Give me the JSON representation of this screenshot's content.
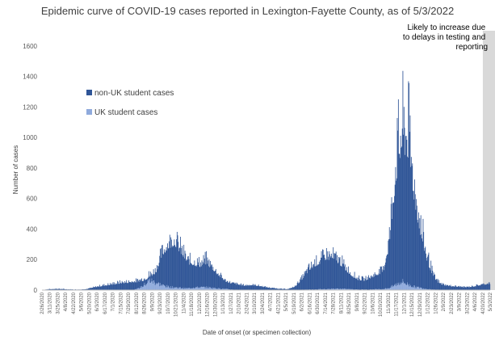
{
  "chart_data": {
    "type": "bar",
    "stacked": true,
    "title": "Epidemic curve of COVID-19 cases reported in Lexington-Fayette County, as of 5/3/2022",
    "xlabel": "Date of onset (or specimen collection)",
    "ylabel": "Number of cases",
    "ylim": [
      0,
      1700
    ],
    "yticks": [
      0,
      200,
      400,
      600,
      800,
      1000,
      1200,
      1400,
      1600
    ],
    "grid": false,
    "legend_position": "left-inside",
    "x_start": "2/26/2020",
    "x_end": "5/3/2022",
    "x_ticks": [
      "2/26/2020",
      "3/11/2020",
      "3/25/2020",
      "4/8/2020",
      "4/22/2020",
      "5/6/2020",
      "5/20/2020",
      "6/3/2020",
      "6/17/2020",
      "7/1/2020",
      "7/15/2020",
      "7/29/2020",
      "8/12/2020",
      "8/26/2020",
      "9/9/2020",
      "9/23/2020",
      "10/7/2020",
      "10/21/2020",
      "11/4/2020",
      "11/18/2020",
      "12/2/2020",
      "12/16/2020",
      "12/30/2020",
      "1/13/2021",
      "1/27/2021",
      "2/10/2021",
      "2/24/2021",
      "3/10/2021",
      "3/24/2021",
      "4/7/2021",
      "4/21/2021",
      "5/5/2021",
      "5/19/2021",
      "6/2/2021",
      "6/16/2021",
      "6/30/2021",
      "7/14/2021",
      "7/28/2021",
      "8/11/2021",
      "8/25/2021",
      "9/8/2021",
      "9/22/2021",
      "10/6/2021",
      "10/20/2021",
      "11/3/2021",
      "11/17/2021",
      "12/1/2021",
      "12/15/2021",
      "12/29/2021",
      "1/12/2022",
      "1/26/2022",
      "2/9/2022",
      "2/23/2022",
      "3/9/2022",
      "3/23/2022",
      "4/6/2022",
      "4/20/2022",
      "5/3/2022"
    ],
    "series": [
      {
        "name": "non-UK student cases",
        "color": "#2f5597",
        "weekly_peak_values": [
          2,
          8,
          12,
          10,
          8,
          6,
          5,
          10,
          22,
          35,
          45,
          55,
          65,
          70,
          75,
          80,
          110,
          140,
          180,
          320,
          400,
          420,
          350,
          250,
          240,
          230,
          260,
          190,
          130,
          80,
          60,
          50,
          40,
          45,
          40,
          30,
          20,
          15,
          10,
          10,
          30,
          90,
          170,
          220,
          250,
          300,
          290,
          260,
          200,
          140,
          100,
          90,
          110,
          140,
          170,
          500,
          1150,
          1450,
          1420,
          900,
          550,
          300,
          120,
          60,
          40,
          35,
          30,
          25,
          30,
          40,
          50,
          60
        ],
        "weekly_typical_values": [
          1,
          4,
          7,
          6,
          4,
          3,
          3,
          6,
          14,
          22,
          28,
          33,
          40,
          44,
          47,
          50,
          60,
          80,
          110,
          220,
          270,
          290,
          230,
          170,
          160,
          150,
          170,
          130,
          90,
          55,
          40,
          33,
          27,
          30,
          27,
          20,
          14,
          10,
          6,
          6,
          20,
          60,
          110,
          150,
          170,
          200,
          190,
          170,
          130,
          90,
          65,
          60,
          75,
          95,
          115,
          280,
          700,
          900,
          860,
          560,
          330,
          180,
          75,
          38,
          27,
          23,
          20,
          17,
          20,
          27,
          34,
          40
        ]
      },
      {
        "name": "UK student cases",
        "color": "#8faadc",
        "weekly_peak_values": [
          0,
          0,
          0,
          0,
          0,
          0,
          0,
          0,
          0,
          0,
          0,
          0,
          0,
          0,
          0,
          10,
          40,
          90,
          70,
          45,
          30,
          25,
          20,
          15,
          25,
          25,
          25,
          20,
          15,
          10,
          5,
          3,
          2,
          2,
          2,
          2,
          2,
          2,
          1,
          1,
          2,
          3,
          5,
          6,
          8,
          10,
          12,
          12,
          10,
          8,
          6,
          5,
          6,
          8,
          10,
          20,
          50,
          80,
          50,
          30,
          20,
          10,
          5,
          3,
          2,
          2,
          2,
          2,
          2,
          2,
          2,
          2
        ]
      }
    ],
    "annotation": "Likely to increase due to delays in testing and reporting",
    "shaded_region": {
      "start": "4/20/2022",
      "end": "5/3/2022",
      "color": "#d9d9d9"
    }
  }
}
